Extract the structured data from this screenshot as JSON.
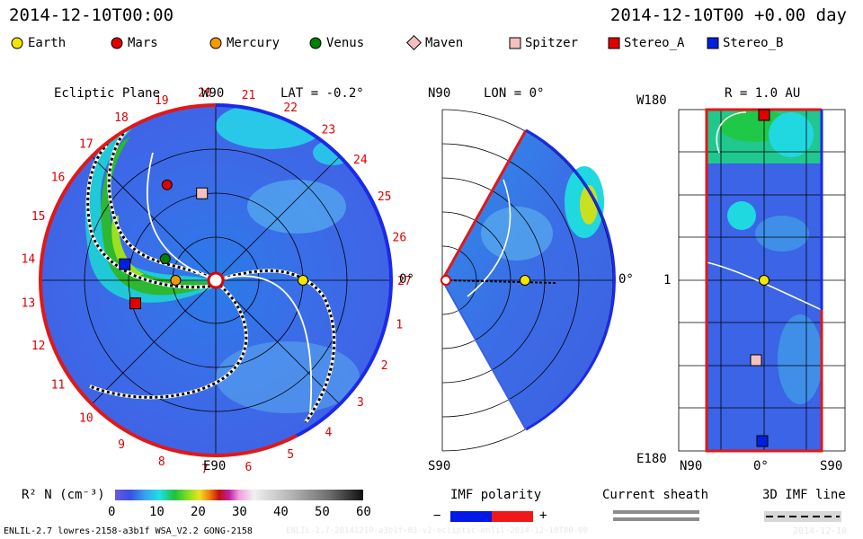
{
  "header": {
    "datetime_left": "2014-12-10T00:00",
    "datetime_right": "2014-12-10T00 +0.00 day"
  },
  "legend": [
    {
      "label": "Earth",
      "marker": "circle",
      "color": "#f5e600"
    },
    {
      "label": "Mars",
      "marker": "circle",
      "color": "#e00000"
    },
    {
      "label": "Mercury",
      "marker": "circle",
      "color": "#f59a00"
    },
    {
      "label": "Venus",
      "marker": "circle",
      "color": "#008000"
    },
    {
      "label": "Maven",
      "marker": "diamond",
      "color": "#f5c0c0"
    },
    {
      "label": "Spitzer",
      "marker": "square",
      "color": "#f5c0c0"
    },
    {
      "label": "Stereo_A",
      "marker": "square",
      "color": "#e00000"
    },
    {
      "label": "Stereo_B",
      "marker": "square",
      "color": "#0020e0"
    }
  ],
  "chart_data": [
    {
      "type": "heatmap",
      "panel": "ecliptic",
      "title": "Ecliptic Plane",
      "top_label": "W90",
      "bottom_label": "E90",
      "right_label": "0°",
      "lat_label": "LAT = -0.2°",
      "carrington_ticks": [
        "1",
        "2",
        "3",
        "4",
        "5",
        "6",
        "7",
        "8",
        "9",
        "10",
        "11",
        "12",
        "13",
        "14",
        "15",
        "16",
        "17",
        "18",
        "19",
        "20",
        "21",
        "22",
        "23",
        "24",
        "25",
        "26",
        "27"
      ],
      "bodies": [
        {
          "name": "Earth",
          "r_au": 1.0,
          "lon_deg": 0
        },
        {
          "name": "Mars",
          "r_au": 1.23,
          "lon_deg": -117
        },
        {
          "name": "Mercury",
          "r_au": 0.46,
          "lon_deg": 180
        },
        {
          "name": "Venus",
          "r_au": 0.63,
          "lon_deg": -157
        },
        {
          "name": "Spitzer",
          "r_au": 1.01,
          "lon_deg": -99
        },
        {
          "name": "Stereo_A",
          "r_au": 0.96,
          "lon_deg": 164
        },
        {
          "name": "Stereo_B",
          "r_au": 1.06,
          "lon_deg": -170
        }
      ]
    },
    {
      "type": "heatmap",
      "panel": "meridional",
      "top_label": "N90",
      "bottom_label": "S90",
      "right_label": "0°",
      "lon_label": "LON = 0°"
    },
    {
      "type": "heatmap",
      "panel": "radial",
      "r_label": "R = 1.0 AU",
      "top_left_label": "W180",
      "bottom_left_label": "E180",
      "mid_left_label": "1",
      "x_labels": [
        "N90",
        "0°",
        "S90"
      ]
    }
  ],
  "colorbar": {
    "label": "R² N (cm⁻³)",
    "ticks": [
      "0",
      "10",
      "20",
      "30",
      "40",
      "50",
      "60"
    ],
    "range": [
      0,
      60
    ]
  },
  "imf_polarity": {
    "label": "IMF polarity",
    "minus": "−",
    "plus": "+"
  },
  "current_sheath": {
    "label": "Current sheath"
  },
  "imf_line": {
    "label": "3D IMF line"
  },
  "footer": {
    "left": "ENLIL-2.7 lowres-2158-a3b1f WSA_V2.2 GONG-2158",
    "center": "ENLIL-2.7-20141210-a3b1f-03-v2-ecliptic-enlil-2014-12-10T00-00",
    "right": "2014-12-10"
  }
}
